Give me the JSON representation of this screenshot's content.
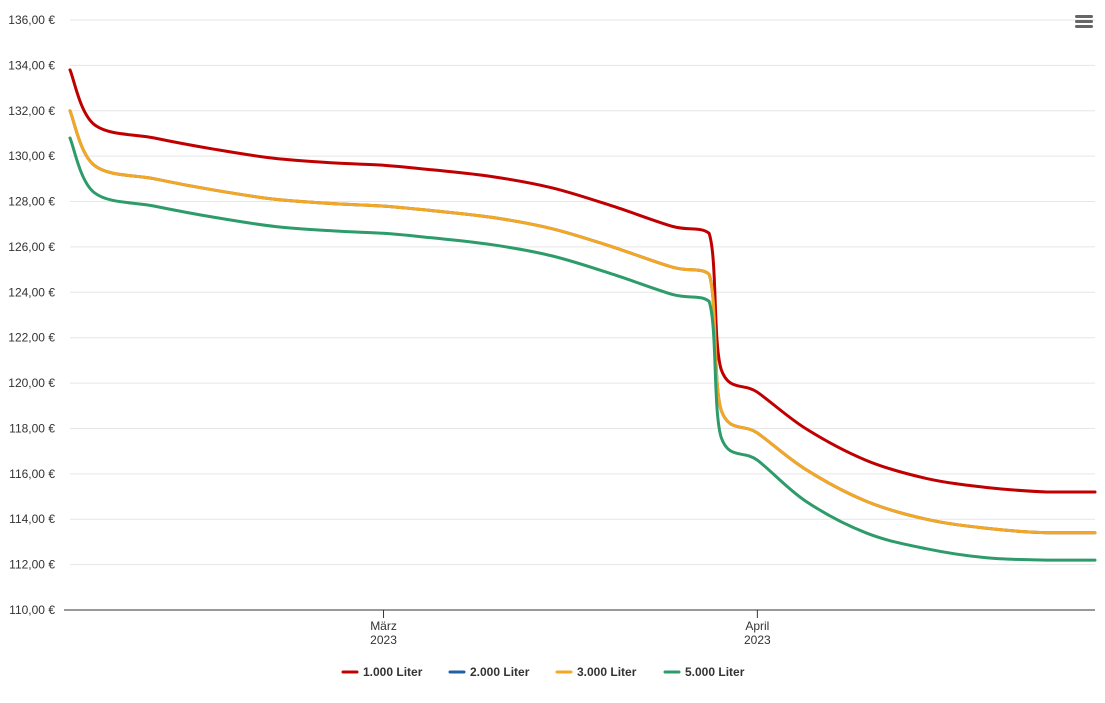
{
  "colors": {
    "grid": "#e6e6e6",
    "axis": "#333333",
    "text": "#333333",
    "menu": "#666666"
  },
  "menu": {
    "icon": "hamburger-menu-icon"
  },
  "chart_data": {
    "type": "line",
    "title": "",
    "xlabel": "",
    "ylabel": "",
    "x_range": [
      "2023-02-03",
      "2023-04-29"
    ],
    "ylim": [
      110,
      136
    ],
    "y_ticks": [
      110,
      112,
      114,
      116,
      118,
      120,
      122,
      124,
      126,
      128,
      130,
      132,
      134,
      136
    ],
    "y_tick_labels": [
      "110,00 €",
      "112,00 €",
      "114,00 €",
      "116,00 €",
      "118,00 €",
      "120,00 €",
      "122,00 €",
      "124,00 €",
      "126,00 €",
      "128,00 €",
      "130,00 €",
      "132,00 €",
      "134,00 €",
      "136,00 €"
    ],
    "x_ticks": [
      {
        "date": "2023-03-01",
        "month": "März",
        "year": "2023"
      },
      {
        "date": "2023-04-01",
        "month": "April",
        "year": "2023"
      }
    ],
    "grid": true,
    "legend_position": "bottom-center",
    "x": [
      "2023-02-03",
      "2023-02-05",
      "2023-02-10",
      "2023-02-15",
      "2023-02-20",
      "2023-02-25",
      "2023-03-01",
      "2023-03-05",
      "2023-03-10",
      "2023-03-15",
      "2023-03-20",
      "2023-03-25",
      "2023-03-28",
      "2023-03-29",
      "2023-04-01",
      "2023-04-05",
      "2023-04-10",
      "2023-04-15",
      "2023-04-20",
      "2023-04-25",
      "2023-04-29"
    ],
    "series": [
      {
        "name": "1.000 Liter",
        "color": "#c00000",
        "values": [
          133.8,
          131.4,
          130.8,
          130.3,
          129.9,
          129.7,
          129.6,
          129.4,
          129.1,
          128.6,
          127.8,
          126.9,
          126.6,
          120.6,
          119.6,
          118.0,
          116.6,
          115.8,
          115.4,
          115.2,
          115.2
        ]
      },
      {
        "name": "2.000 Liter",
        "color": "#1f5fa8",
        "values": [
          132.0,
          129.6,
          129.0,
          128.5,
          128.1,
          127.9,
          127.8,
          127.6,
          127.3,
          126.8,
          126.0,
          125.1,
          124.8,
          118.8,
          117.8,
          116.2,
          114.8,
          114.0,
          113.6,
          113.4,
          113.4
        ]
      },
      {
        "name": "3.000 Liter",
        "color": "#f5a623",
        "values": [
          132.0,
          129.6,
          129.0,
          128.5,
          128.1,
          127.9,
          127.8,
          127.6,
          127.3,
          126.8,
          126.0,
          125.1,
          124.8,
          118.8,
          117.8,
          116.2,
          114.8,
          114.0,
          113.6,
          113.4,
          113.4
        ]
      },
      {
        "name": "5.000 Liter",
        "color": "#2e9b6a",
        "values": [
          130.8,
          128.4,
          127.8,
          127.3,
          126.9,
          126.7,
          126.6,
          126.4,
          126.1,
          125.6,
          124.8,
          123.9,
          123.6,
          117.6,
          116.6,
          114.8,
          113.4,
          112.7,
          112.3,
          112.2,
          112.2
        ]
      }
    ]
  }
}
